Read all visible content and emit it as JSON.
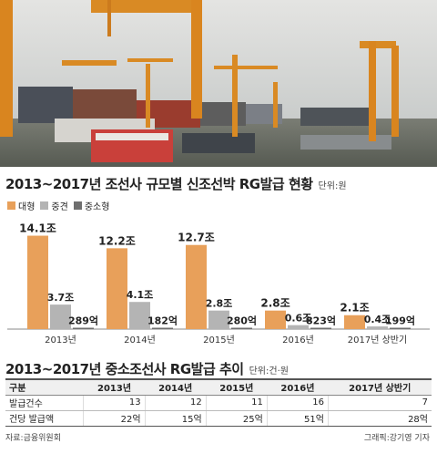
{
  "header1": {
    "title": "2013~2017년 조선사 규모별 신조선박 RG발급 현황",
    "unit": "단위:원"
  },
  "legend": [
    {
      "label": "대형",
      "color": "#e8a05a"
    },
    {
      "label": "중견",
      "color": "#b4b4b4"
    },
    {
      "label": "중소형",
      "color": "#6f6f6f"
    }
  ],
  "chart_data": {
    "type": "bar",
    "categories": [
      "2013년",
      "2014년",
      "2015년",
      "2016년",
      "2017년 상반기"
    ],
    "series": [
      {
        "name": "대형",
        "values": [
          14.1,
          12.2,
          12.7,
          2.8,
          2.1
        ],
        "labels": [
          "14.1조",
          "12.2조",
          "12.7조",
          "2.8조",
          "2.1조"
        ],
        "color": "#e8a05a"
      },
      {
        "name": "중견",
        "values": [
          3.7,
          4.1,
          2.8,
          0.6,
          0.4
        ],
        "labels": [
          "3.7조",
          "4.1조",
          "2.8조",
          "0.6조",
          "0.4조"
        ],
        "color": "#b4b4b4"
      },
      {
        "name": "중소형",
        "values": [
          0.0289,
          0.0182,
          0.028,
          0.0823,
          0.0199
        ],
        "labels": [
          "289억",
          "182억",
          "280억",
          "823억",
          "199억"
        ],
        "color": "#6f6f6f"
      }
    ],
    "ylabel": "",
    "ylim": [
      0,
      15
    ]
  },
  "header2": {
    "title": "2013~2017년 중소조선사 RG발급 추이",
    "unit": "단위:건·원"
  },
  "table": {
    "headers": [
      "구분",
      "2013년",
      "2014년",
      "2015년",
      "2016년",
      "2017년 상반기"
    ],
    "rows": [
      [
        "발급건수",
        "13",
        "12",
        "11",
        "16",
        "7"
      ],
      [
        "건당 발급액",
        "22억",
        "15억",
        "25억",
        "51억",
        "28억"
      ]
    ]
  },
  "source": "자료:금융위원회",
  "credit": "그래픽:강기영 기자"
}
